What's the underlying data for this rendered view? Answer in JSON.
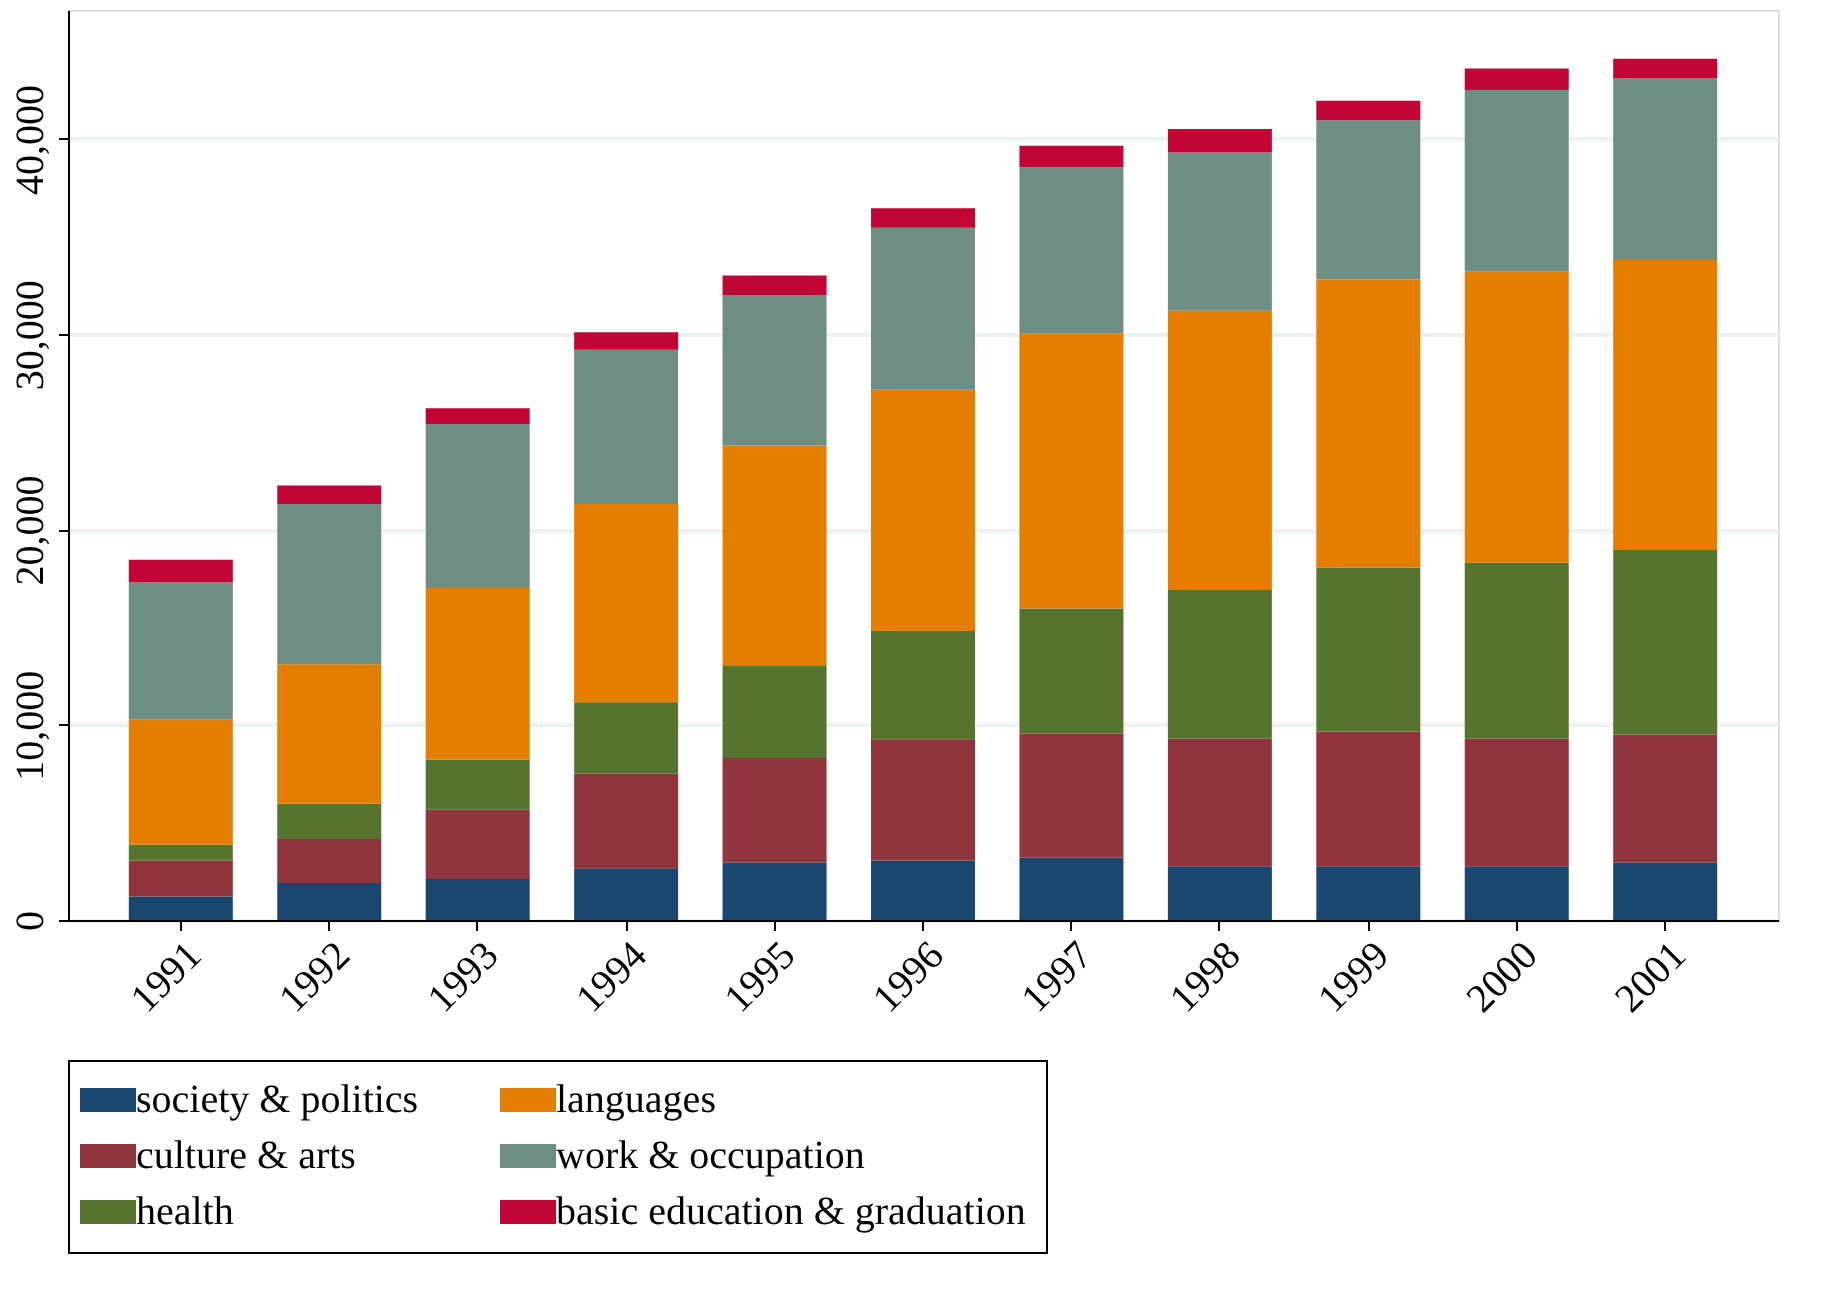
{
  "chart_data": {
    "type": "bar",
    "stacked": true,
    "categories": [
      "1991",
      "1992",
      "1993",
      "1994",
      "1995",
      "1996",
      "1997",
      "1998",
      "1999",
      "2000",
      "2001"
    ],
    "series": [
      {
        "name": "society & politics",
        "color": "#1a476f",
        "values": [
          1200,
          1900,
          2100,
          2650,
          2950,
          3050,
          3200,
          2750,
          2750,
          2750,
          2950
        ]
      },
      {
        "name": "culture & arts",
        "color": "#90353b",
        "values": [
          1850,
          2250,
          3550,
          4850,
          5350,
          6200,
          6350,
          6550,
          6900,
          6550,
          6550
        ]
      },
      {
        "name": "health",
        "color": "#55752f",
        "values": [
          800,
          1800,
          2550,
          3650,
          4750,
          5550,
          6400,
          7600,
          8400,
          9000,
          9450
        ]
      },
      {
        "name": "languages",
        "color": "#e37e00",
        "values": [
          6400,
          7150,
          8800,
          10150,
          11250,
          12350,
          14100,
          14300,
          14750,
          14900,
          14850
        ]
      },
      {
        "name": "work & occupation",
        "color": "#6e8e84",
        "values": [
          7050,
          8200,
          8400,
          7900,
          7700,
          8300,
          8500,
          8100,
          8150,
          9300,
          9300
        ]
      },
      {
        "name": "basic education & graduation",
        "color": "#c10534",
        "values": [
          1150,
          950,
          800,
          900,
          1000,
          1000,
          1100,
          1200,
          1000,
          1100,
          1000
        ]
      }
    ],
    "ylim": [
      0,
      46600
    ],
    "yticks": [
      {
        "value": 0,
        "label": "0"
      },
      {
        "value": 10000,
        "label": "10,000"
      },
      {
        "value": 20000,
        "label": "20,000"
      },
      {
        "value": 30000,
        "label": "30,000"
      },
      {
        "value": 40000,
        "label": "40,000"
      }
    ],
    "grid": "y",
    "legend": "bottom"
  }
}
